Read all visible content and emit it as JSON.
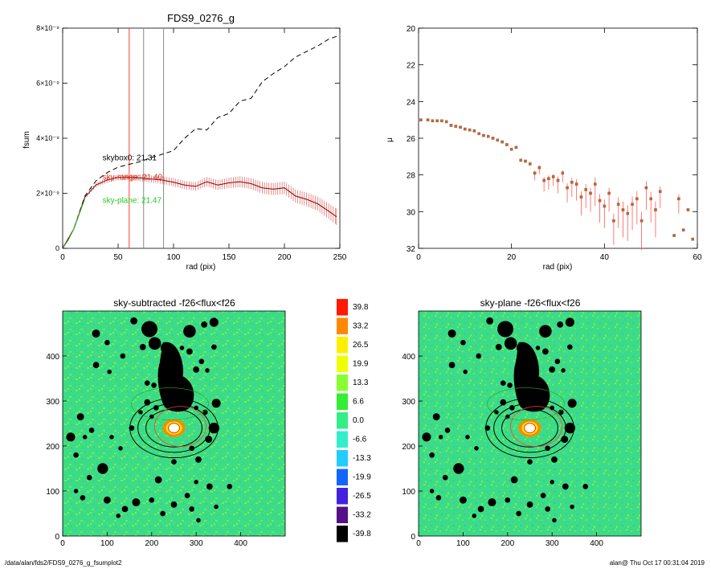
{
  "footer": {
    "path": "/data/alan/fds2/FDS9_0276_g_fsumplot2",
    "stamp": "alan@  Thu Oct 17 00:31:04 2019"
  },
  "chart_data": [
    {
      "type": "line",
      "title": "FDS9_0276_g",
      "xlabel": "rad (pix)",
      "ylabel": "fsum",
      "xlim": [
        0,
        250
      ],
      "ylim": [
        0,
        8e-09
      ],
      "xticks": [
        "0",
        "50",
        "100",
        "150",
        "200",
        "250"
      ],
      "yticks": [
        "0",
        "2×10⁻⁹",
        "4×10⁻⁹",
        "6×10⁻⁹",
        "8×10⁻⁹"
      ],
      "vertical_lines": [
        {
          "x": 60,
          "color": "#ff3b30"
        },
        {
          "x": 73,
          "color": "#888888"
        },
        {
          "x": 91,
          "color": "#888888"
        }
      ],
      "annotations": [
        {
          "text": "skybox0: 21.31",
          "color": "#000000",
          "x": 36,
          "y": 3.2e-09
        },
        {
          "text": "sky-range: 21.40",
          "color": "#e0321e",
          "x": 36,
          "y": 2.5e-09
        },
        {
          "text": "sky-plane: 21.47",
          "color": "#22cc22",
          "x": 36,
          "y": 1.65e-09
        }
      ],
      "series": [
        {
          "style": "dashed",
          "color": "#000000",
          "x": [
            0,
            10,
            20,
            30,
            40,
            50,
            60,
            70,
            80,
            90,
            100,
            110,
            120,
            130,
            140,
            150,
            160,
            170,
            180,
            190,
            200,
            210,
            220,
            230,
            240,
            247
          ],
          "y": [
            0,
            7e-10,
            1.9e-09,
            2.45e-09,
            2.75e-09,
            2.95e-09,
            3.05e-09,
            3.15e-09,
            3.3e-09,
            3.42e-09,
            3.55e-09,
            4e-09,
            4.35e-09,
            4.3e-09,
            4.75e-09,
            4.9e-09,
            5.35e-09,
            5.45e-09,
            6.05e-09,
            6.35e-09,
            6.6e-09,
            6.95e-09,
            7.15e-09,
            7.35e-09,
            7.6e-09,
            7.7e-09
          ]
        },
        {
          "style": "solid",
          "color": "#8b0000",
          "errorbar_color": "#e06060",
          "x": [
            0,
            10,
            20,
            30,
            40,
            50,
            60,
            70,
            80,
            90,
            100,
            110,
            120,
            130,
            140,
            150,
            160,
            170,
            180,
            190,
            200,
            210,
            220,
            230,
            240,
            247
          ],
          "y": [
            0,
            7e-10,
            1.85e-09,
            2.3e-09,
            2.48e-09,
            2.58e-09,
            2.58e-09,
            2.56e-09,
            2.52e-09,
            2.48e-09,
            2.4e-09,
            2.3e-09,
            2.25e-09,
            2.42e-09,
            2.3e-09,
            2.38e-09,
            2.42e-09,
            2.35e-09,
            2.2e-09,
            2.15e-09,
            2.2e-09,
            1.9e-09,
            1.78e-09,
            1.62e-09,
            1.35e-09,
            1.15e-09
          ],
          "err": [
            0,
            2e-11,
            5e-11,
            8e-11,
            1e-10,
            1e-10,
            1.1e-10,
            1.2e-10,
            1.3e-10,
            1.4e-10,
            1.5e-10,
            1.5e-10,
            1.6e-10,
            1.7e-10,
            1.8e-10,
            1.9e-10,
            2e-10,
            2e-10,
            2.1e-10,
            2.2e-10,
            2.3e-10,
            2.4e-10,
            2.5e-10,
            2.6e-10,
            2.8e-10,
            3e-10
          ]
        },
        {
          "style": "solid",
          "color": "#22aa22",
          "x": [
            0,
            5,
            10,
            15,
            20
          ],
          "y": [
            0,
            3e-10,
            7e-10,
            1.25e-09,
            1.8e-09
          ]
        }
      ]
    },
    {
      "type": "scatter",
      "xlabel": "rad (pix)",
      "ylabel": "μ",
      "xlim": [
        0,
        60
      ],
      "ylim": [
        32,
        20
      ],
      "xticks": [
        "0",
        "20",
        "40",
        "60"
      ],
      "yticks": [
        "20",
        "22",
        "24",
        "26",
        "28",
        "30",
        "32"
      ],
      "points": [
        [
          0.5,
          25.0,
          0.05
        ],
        [
          2,
          25.0,
          0.05
        ],
        [
          3,
          25.05,
          0.05
        ],
        [
          4,
          25.05,
          0.05
        ],
        [
          5,
          25.05,
          0.05
        ],
        [
          6,
          25.1,
          0.05
        ],
        [
          7,
          25.3,
          0.06
        ],
        [
          8,
          25.35,
          0.06
        ],
        [
          9,
          25.4,
          0.06
        ],
        [
          10,
          25.5,
          0.07
        ],
        [
          11,
          25.55,
          0.08
        ],
        [
          12,
          25.6,
          0.08
        ],
        [
          13,
          25.75,
          0.08
        ],
        [
          14,
          25.85,
          0.1
        ],
        [
          15,
          25.9,
          0.1
        ],
        [
          16,
          26.0,
          0.12
        ],
        [
          17,
          26.1,
          0.12
        ],
        [
          18,
          26.2,
          0.15
        ],
        [
          19,
          26.35,
          0.18
        ],
        [
          20,
          26.6,
          0.2
        ],
        [
          21,
          26.5,
          0.2
        ],
        [
          22,
          27.2,
          0.25
        ],
        [
          23,
          27.25,
          0.25
        ],
        [
          24,
          27.4,
          0.3
        ],
        [
          25,
          27.9,
          0.4
        ],
        [
          26,
          27.6,
          0.35
        ],
        [
          27,
          28.3,
          0.6
        ],
        [
          28,
          28.2,
          0.6
        ],
        [
          29,
          28.1,
          0.5
        ],
        [
          30,
          28.3,
          0.7
        ],
        [
          31,
          27.9,
          0.5
        ],
        [
          32,
          28.7,
          0.8
        ],
        [
          33,
          28.4,
          0.8
        ],
        [
          34,
          28.5,
          0.9
        ],
        [
          35,
          29.2,
          1.0
        ],
        [
          36,
          28.8,
          1.0
        ],
        [
          37,
          29.0,
          1.0
        ],
        [
          38,
          28.5,
          1.2
        ],
        [
          39,
          29.4,
          1.2
        ],
        [
          40,
          29.7,
          1.2
        ],
        [
          41,
          29.0,
          1.0
        ],
        [
          42,
          30.5,
          1.3
        ],
        [
          43,
          29.6,
          1.3
        ],
        [
          44,
          29.9,
          1.5
        ],
        [
          45,
          30.1,
          1.5
        ],
        [
          46,
          29.6,
          1.4
        ],
        [
          47,
          29.3,
          1.4
        ],
        [
          48,
          30.5,
          1.6
        ],
        [
          49,
          28.7,
          1.2
        ],
        [
          50,
          29.3,
          1.3
        ],
        [
          51,
          29.9,
          1.5
        ],
        [
          52,
          28.9,
          0.9
        ],
        [
          55,
          31.3,
          0.2
        ],
        [
          56,
          29.3,
          0.8
        ],
        [
          57,
          31.0,
          0.1
        ],
        [
          58,
          29.9,
          0.2
        ],
        [
          59,
          31.5,
          0.1
        ]
      ]
    },
    {
      "type": "heatmap",
      "title": "sky-subtracted -f26<flux<f26",
      "xlim": [
        0,
        500
      ],
      "ylim": [
        0,
        500
      ],
      "xticks": [
        "0",
        "100",
        "200",
        "300",
        "400"
      ],
      "yticks": [
        "0",
        "100",
        "200",
        "300",
        "400"
      ],
      "center": [
        250,
        240
      ],
      "ellipse_radii": [
        70,
        90,
        110
      ]
    },
    {
      "type": "heatmap",
      "title": "sky-plane -f26<flux<f26",
      "xlim": [
        0,
        500
      ],
      "ylim": [
        0,
        500
      ],
      "xticks": [
        "0",
        "100",
        "200",
        "300",
        "400"
      ],
      "yticks": [
        "0",
        "100",
        "200",
        "300",
        "400"
      ],
      "center": [
        250,
        240
      ],
      "ellipse_radii": [
        70,
        90,
        110
      ]
    },
    {
      "type": "colorbar",
      "labels": [
        "39.8",
        "33.2",
        "26.5",
        "19.9",
        "13.3",
        "6.6",
        "0.0",
        "-6.6",
        "-13.3",
        "-19.9",
        "-26.5",
        "-33.2",
        "-39.8"
      ],
      "colors": [
        "#ff1a00",
        "#ff8800",
        "#ffee00",
        "#eeff00",
        "#88ff33",
        "#33ee33",
        "#33ee88",
        "#33eecc",
        "#22ccff",
        "#1166ff",
        "#4422dd",
        "#551188",
        "#000000"
      ]
    }
  ]
}
